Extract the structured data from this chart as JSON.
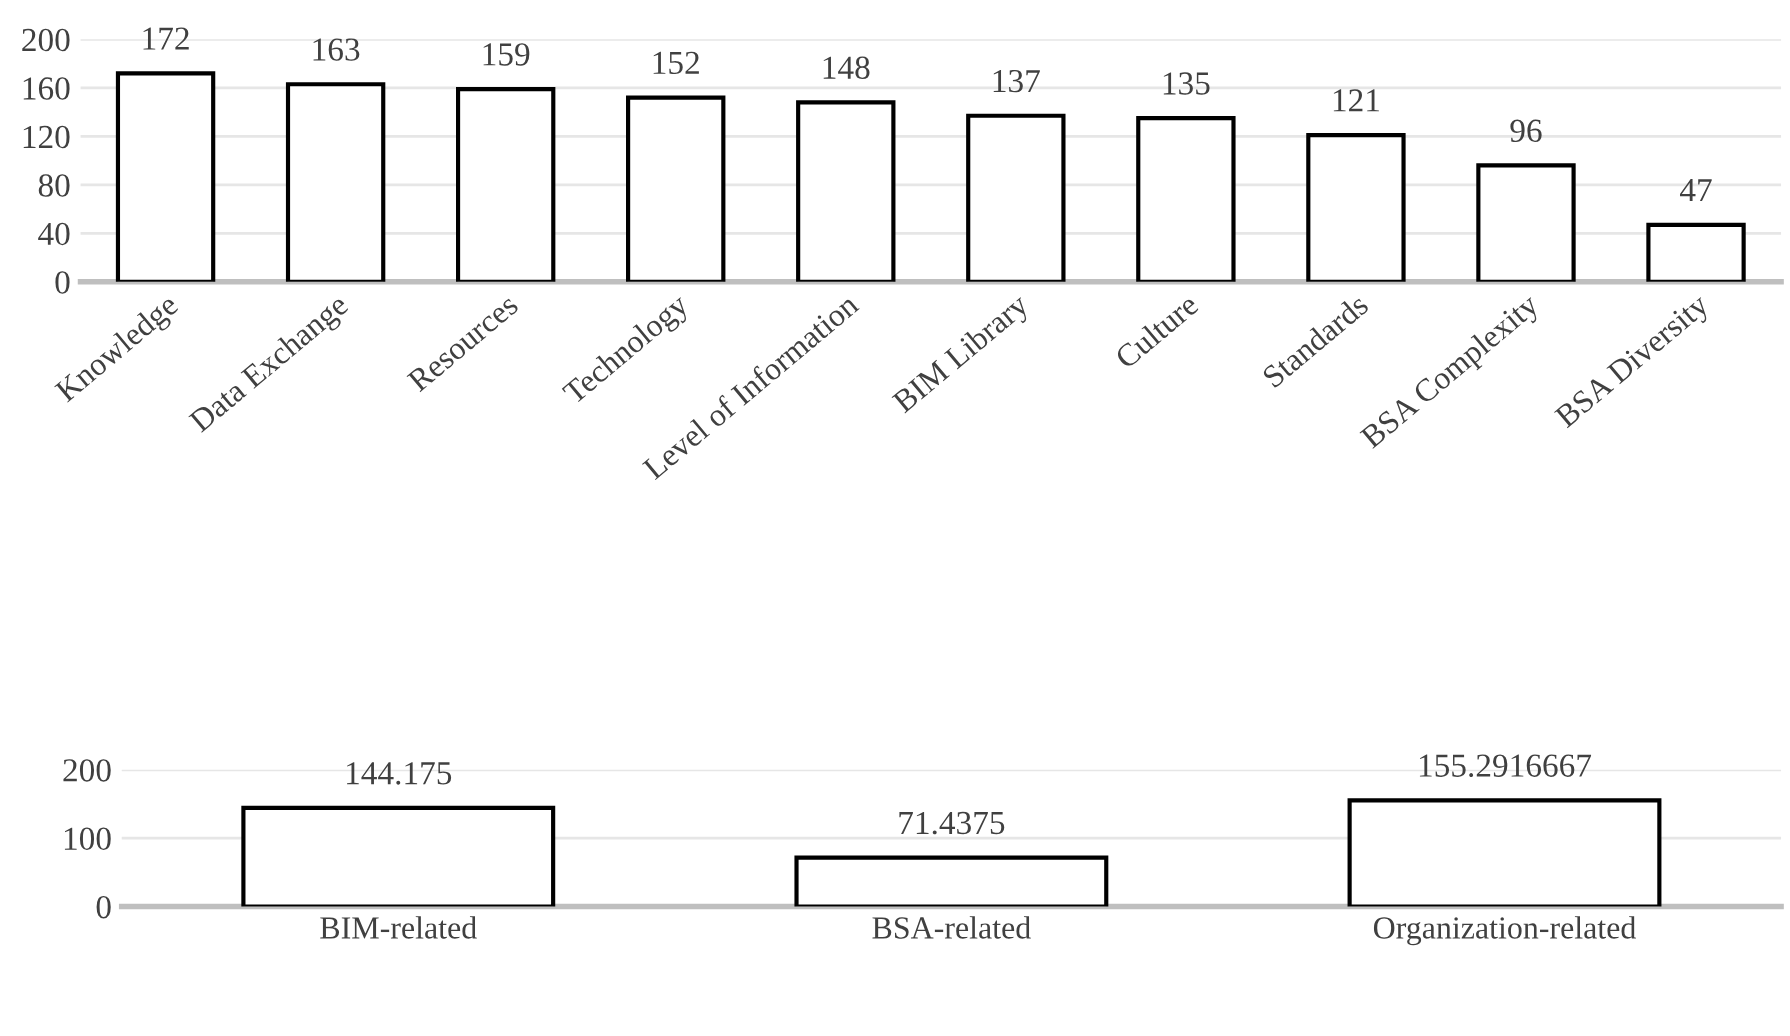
{
  "chart_data": [
    {
      "type": "bar",
      "categories": [
        "Knowledge",
        "Data Exchange",
        "Resources",
        "Technology",
        "Level of Information",
        "BIM Library",
        "Culture",
        "Standards",
        "BSA Complexity",
        "BSA Diversity"
      ],
      "values": [
        172,
        163,
        159,
        152,
        148,
        137,
        135,
        121,
        96,
        47
      ],
      "color": "#ffffff",
      "ylim": [
        0,
        200
      ],
      "yticks": [
        0,
        40,
        80,
        120,
        160,
        200
      ],
      "grid": "y",
      "data_labels": true
    },
    {
      "type": "bar",
      "categories": [
        "BIM-related",
        "BSA-related",
        "Organization-related"
      ],
      "values": [
        144.175,
        71.4375,
        155.2916667
      ],
      "color": "#ffffff",
      "ylim": [
        0,
        200
      ],
      "yticks": [
        0,
        100,
        200
      ],
      "grid": "y",
      "data_labels": true
    }
  ]
}
